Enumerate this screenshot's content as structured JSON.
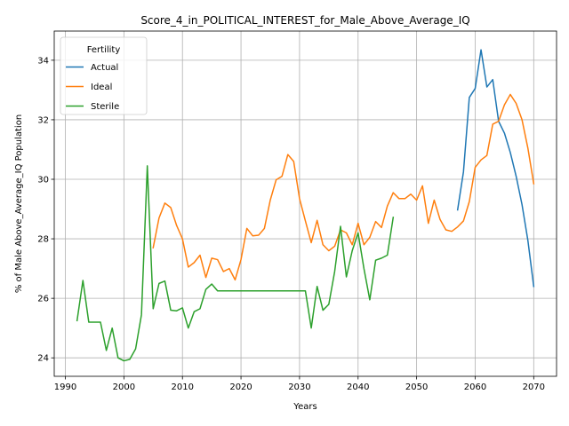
{
  "chart_data": {
    "type": "line",
    "title": "Score_4_in_POLITICAL_INTEREST_for_Male_Above_Average_IQ",
    "xlabel": "Years",
    "ylabel": "% of Male Above_Average_IQ Population",
    "xlim": [
      1988.1,
      2073.9
    ],
    "ylim": [
      23.38,
      34.98
    ],
    "xticks": [
      1990,
      2000,
      2010,
      2020,
      2030,
      2040,
      2050,
      2060,
      2070
    ],
    "yticks": [
      24,
      26,
      28,
      30,
      32,
      34
    ],
    "grid": true,
    "legend": {
      "title": "Fertility",
      "placement": "top-left"
    },
    "colors": {
      "Actual": "#1f77b4",
      "Ideal": "#ff7f0e",
      "Sterile": "#2ca02c"
    },
    "series": [
      {
        "name": "Actual",
        "x": [
          2057,
          2058,
          2059,
          2060,
          2061,
          2062,
          2063,
          2064,
          2065,
          2066,
          2067,
          2068,
          2069,
          2070
        ],
        "y": [
          28.97,
          30.25,
          32.75,
          33.05,
          34.35,
          33.1,
          33.35,
          31.95,
          31.55,
          30.9,
          30.1,
          29.15,
          27.95,
          26.4
        ]
      },
      {
        "name": "Ideal",
        "x": [
          2005,
          2006,
          2007,
          2008,
          2009,
          2010,
          2011,
          2012,
          2013,
          2014,
          2015,
          2016,
          2017,
          2018,
          2019,
          2020,
          2021,
          2022,
          2023,
          2024,
          2025,
          2026,
          2027,
          2028,
          2029,
          2030,
          2031,
          2032,
          2033,
          2034,
          2035,
          2036,
          2037,
          2038,
          2039,
          2040,
          2041,
          2042,
          2043,
          2044,
          2045,
          2046,
          2047,
          2048,
          2049,
          2050,
          2051,
          2052,
          2053,
          2054,
          2055,
          2056,
          2057,
          2058,
          2059,
          2060,
          2061,
          2062,
          2063,
          2064,
          2065,
          2066,
          2067,
          2068,
          2069,
          2070
        ],
        "y": [
          27.7,
          28.7,
          29.2,
          29.05,
          28.45,
          28.0,
          27.05,
          27.2,
          27.45,
          26.7,
          27.35,
          27.3,
          26.9,
          27.0,
          26.62,
          27.3,
          28.35,
          28.1,
          28.12,
          28.35,
          29.3,
          29.98,
          30.1,
          30.83,
          30.6,
          29.35,
          28.6,
          27.87,
          28.62,
          27.8,
          27.6,
          27.75,
          28.3,
          28.2,
          27.8,
          28.52,
          27.8,
          28.05,
          28.58,
          28.38,
          29.1,
          29.55,
          29.35,
          29.35,
          29.5,
          29.3,
          29.78,
          28.52,
          29.3,
          28.65,
          28.3,
          28.25,
          28.4,
          28.6,
          29.25,
          30.4,
          30.65,
          30.8,
          31.85,
          31.95,
          32.5,
          32.85,
          32.55,
          32.0,
          31.05,
          29.85
        ]
      },
      {
        "name": "Sterile",
        "x": [
          1992,
          1993,
          1994,
          1995,
          1996,
          1997,
          1998,
          1999,
          2000,
          2001,
          2002,
          2003,
          2004,
          2005,
          2006,
          2007,
          2008,
          2009,
          2010,
          2011,
          2012,
          2013,
          2014,
          2015,
          2016,
          2017,
          2018,
          2019,
          2020,
          2021,
          2022,
          2023,
          2024,
          2025,
          2026,
          2027,
          2028,
          2029,
          2030,
          2031,
          2032,
          2033,
          2034,
          2035,
          2036,
          2037,
          2038,
          2039,
          2040,
          2041,
          2042,
          2043,
          2044,
          2045,
          2046
        ],
        "y": [
          25.25,
          26.6,
          25.2,
          25.2,
          25.2,
          24.25,
          25.0,
          24.0,
          23.9,
          23.95,
          24.3,
          25.45,
          30.45,
          25.65,
          26.5,
          26.58,
          25.6,
          25.58,
          25.68,
          25.0,
          25.55,
          25.65,
          26.3,
          26.48,
          26.25,
          26.25,
          26.25,
          26.25,
          26.25,
          26.25,
          26.25,
          26.25,
          26.25,
          26.25,
          26.25,
          26.25,
          26.25,
          26.25,
          26.25,
          26.25,
          25.0,
          26.4,
          25.6,
          25.8,
          26.9,
          28.42,
          26.72,
          27.6,
          28.2,
          27.0,
          25.95,
          27.28,
          27.35,
          27.45,
          28.72
        ]
      }
    ]
  }
}
